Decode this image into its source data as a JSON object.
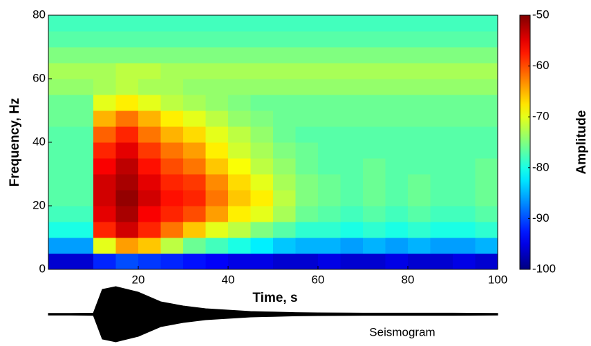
{
  "chart_data": [
    {
      "type": "heatmap",
      "xlabel": "Time, s",
      "ylabel": "Frequency, Hz",
      "colorbar_label": "Amplitude",
      "colormap": "jet",
      "x_edges": [
        0,
        5,
        10,
        15,
        20,
        25,
        30,
        35,
        40,
        45,
        50,
        55,
        60,
        65,
        70,
        75,
        80,
        85,
        90,
        95,
        100
      ],
      "y_edges": [
        0,
        5,
        10,
        15,
        20,
        25,
        30,
        35,
        40,
        45,
        50,
        55,
        60,
        65,
        70,
        75,
        80
      ],
      "z": [
        [
          -96,
          -96,
          -92,
          -90,
          -91,
          -92,
          -93,
          -94,
          -95,
          -95,
          -96,
          -96,
          -95,
          -96,
          -96,
          -95,
          -96,
          -96,
          -95,
          -96
        ],
        [
          -86,
          -86,
          -70,
          -64,
          -66,
          -72,
          -76,
          -78,
          -80,
          -82,
          -84,
          -85,
          -85,
          -86,
          -85,
          -86,
          -85,
          -86,
          -86,
          -85
        ],
        [
          -80,
          -80,
          -58,
          -54,
          -58,
          -62,
          -66,
          -70,
          -72,
          -75,
          -77,
          -79,
          -79,
          -80,
          -79,
          -80,
          -79,
          -80,
          -80,
          -79
        ],
        [
          -78,
          -78,
          -55,
          -52,
          -56,
          -58,
          -60,
          -64,
          -68,
          -70,
          -73,
          -76,
          -77,
          -78,
          -77,
          -78,
          -77,
          -78,
          -78,
          -77
        ],
        [
          -77,
          -77,
          -54,
          -51,
          -54,
          -57,
          -58,
          -62,
          -66,
          -68,
          -72,
          -75,
          -76,
          -77,
          -76,
          -77,
          -76,
          -77,
          -77,
          -76
        ],
        [
          -77,
          -77,
          -54,
          -52,
          -55,
          -58,
          -59,
          -63,
          -67,
          -70,
          -73,
          -75,
          -76,
          -77,
          -76,
          -77,
          -76,
          -77,
          -77,
          -76
        ],
        [
          -77,
          -77,
          -56,
          -53,
          -57,
          -60,
          -62,
          -66,
          -69,
          -72,
          -74,
          -76,
          -77,
          -77,
          -76,
          -77,
          -77,
          -77,
          -77,
          -76
        ],
        [
          -77,
          -77,
          -58,
          -55,
          -59,
          -62,
          -64,
          -68,
          -71,
          -73,
          -75,
          -76,
          -77,
          -77,
          -77,
          -77,
          -77,
          -77,
          -77,
          -77
        ],
        [
          -77,
          -77,
          -61,
          -58,
          -62,
          -65,
          -67,
          -70,
          -72,
          -74,
          -76,
          -77,
          -77,
          -77,
          -77,
          -77,
          -77,
          -77,
          -77,
          -77
        ],
        [
          -76,
          -76,
          -65,
          -62,
          -65,
          -68,
          -70,
          -72,
          -74,
          -75,
          -76,
          -76,
          -76,
          -76,
          -76,
          -76,
          -76,
          -76,
          -76,
          -76
        ],
        [
          -76,
          -76,
          -70,
          -68,
          -70,
          -72,
          -73,
          -74,
          -75,
          -76,
          -76,
          -76,
          -76,
          -76,
          -76,
          -76,
          -76,
          -76,
          -76,
          -76
        ],
        [
          -74,
          -74,
          -73,
          -72,
          -73,
          -73,
          -74,
          -74,
          -74,
          -74,
          -74,
          -74,
          -74,
          -74,
          -74,
          -74,
          -74,
          -74,
          -74,
          -74
        ],
        [
          -73,
          -73,
          -73,
          -72,
          -72,
          -73,
          -73,
          -73,
          -73,
          -73,
          -73,
          -73,
          -73,
          -73,
          -73,
          -73,
          -73,
          -73,
          -73,
          -73
        ],
        [
          -75,
          -75,
          -75,
          -75,
          -75,
          -75,
          -75,
          -75,
          -75,
          -75,
          -75,
          -75,
          -75,
          -75,
          -75,
          -75,
          -75,
          -75,
          -75,
          -75
        ],
        [
          -77,
          -77,
          -77,
          -77,
          -77,
          -77,
          -77,
          -77,
          -77,
          -77,
          -77,
          -77,
          -77,
          -77,
          -77,
          -77,
          -77,
          -77,
          -77,
          -77
        ],
        [
          -78,
          -78,
          -78,
          -78,
          -78,
          -78,
          -78,
          -78,
          -78,
          -78,
          -78,
          -78,
          -78,
          -78,
          -78,
          -78,
          -78,
          -78,
          -78,
          -78
        ]
      ],
      "xlim": [
        0,
        100
      ],
      "ylim": [
        0,
        80
      ],
      "xticks": [
        20,
        40,
        60,
        80,
        100
      ],
      "yticks": [
        0,
        20,
        40,
        60,
        80
      ],
      "clim": [
        -100,
        -50
      ],
      "cticks": [
        -100,
        -90,
        -80,
        -70,
        -60,
        -50
      ]
    },
    {
      "type": "waveform",
      "label": "Seismogram",
      "color": "#000000",
      "x": [
        0,
        5,
        10,
        12,
        15,
        20,
        25,
        30,
        35,
        40,
        45,
        50,
        55,
        60,
        70,
        80,
        90,
        100
      ],
      "values": [
        0.03,
        0.03,
        0.04,
        0.9,
        1.0,
        0.8,
        0.45,
        0.3,
        0.2,
        0.15,
        0.1,
        0.08,
        0.06,
        0.05,
        0.04,
        0.04,
        0.04,
        0.03
      ]
    }
  ]
}
